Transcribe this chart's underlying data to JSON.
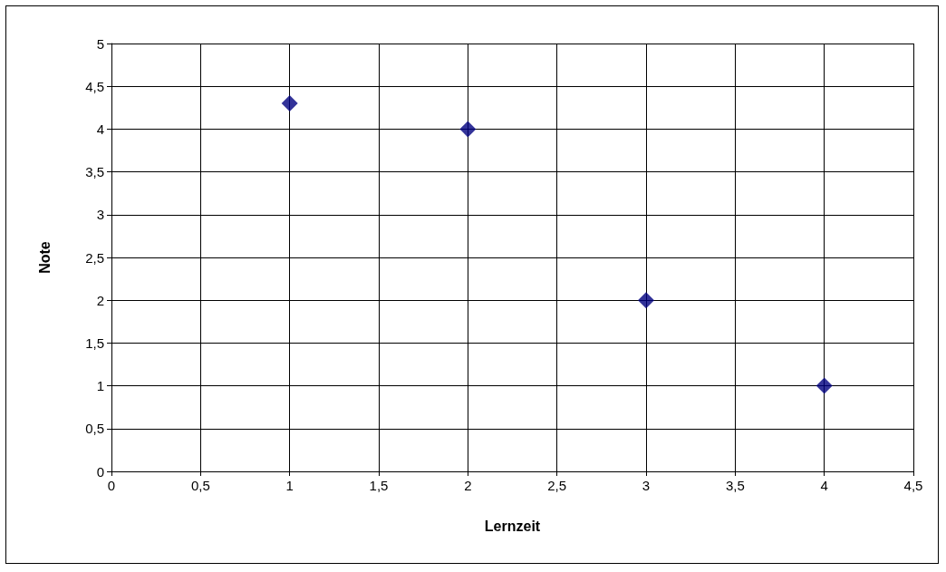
{
  "chart_data": {
    "type": "scatter",
    "xlabel": "Lernzeit",
    "ylabel": "Note",
    "x": [
      1,
      2,
      3,
      4
    ],
    "series": [
      {
        "color": "#000080",
        "values": [
          4.3,
          4,
          2,
          1
        ]
      }
    ],
    "xlim": [
      0,
      4.5
    ],
    "xticks": [
      0,
      {
        "value": 0.5,
        "label": "0,5"
      },
      1,
      {
        "value": 1.5,
        "label": "1,5"
      },
      2,
      {
        "value": 2.5,
        "label": "2,5"
      },
      3,
      {
        "value": 3.5,
        "label": "3,5"
      },
      4,
      {
        "value": 4.5,
        "label": "4,5"
      }
    ],
    "ylim": [
      0,
      5
    ],
    "yticks": [
      0,
      {
        "value": 0.5,
        "label": "0,5"
      },
      1,
      {
        "value": 1.5,
        "label": "1,5"
      },
      2,
      {
        "value": 2.5,
        "label": "2,5"
      },
      3,
      {
        "value": 3.5,
        "label": "3,5"
      },
      4,
      {
        "value": 4.5,
        "label": "4,5"
      },
      5
    ],
    "grid": true,
    "marker": "diamond"
  }
}
